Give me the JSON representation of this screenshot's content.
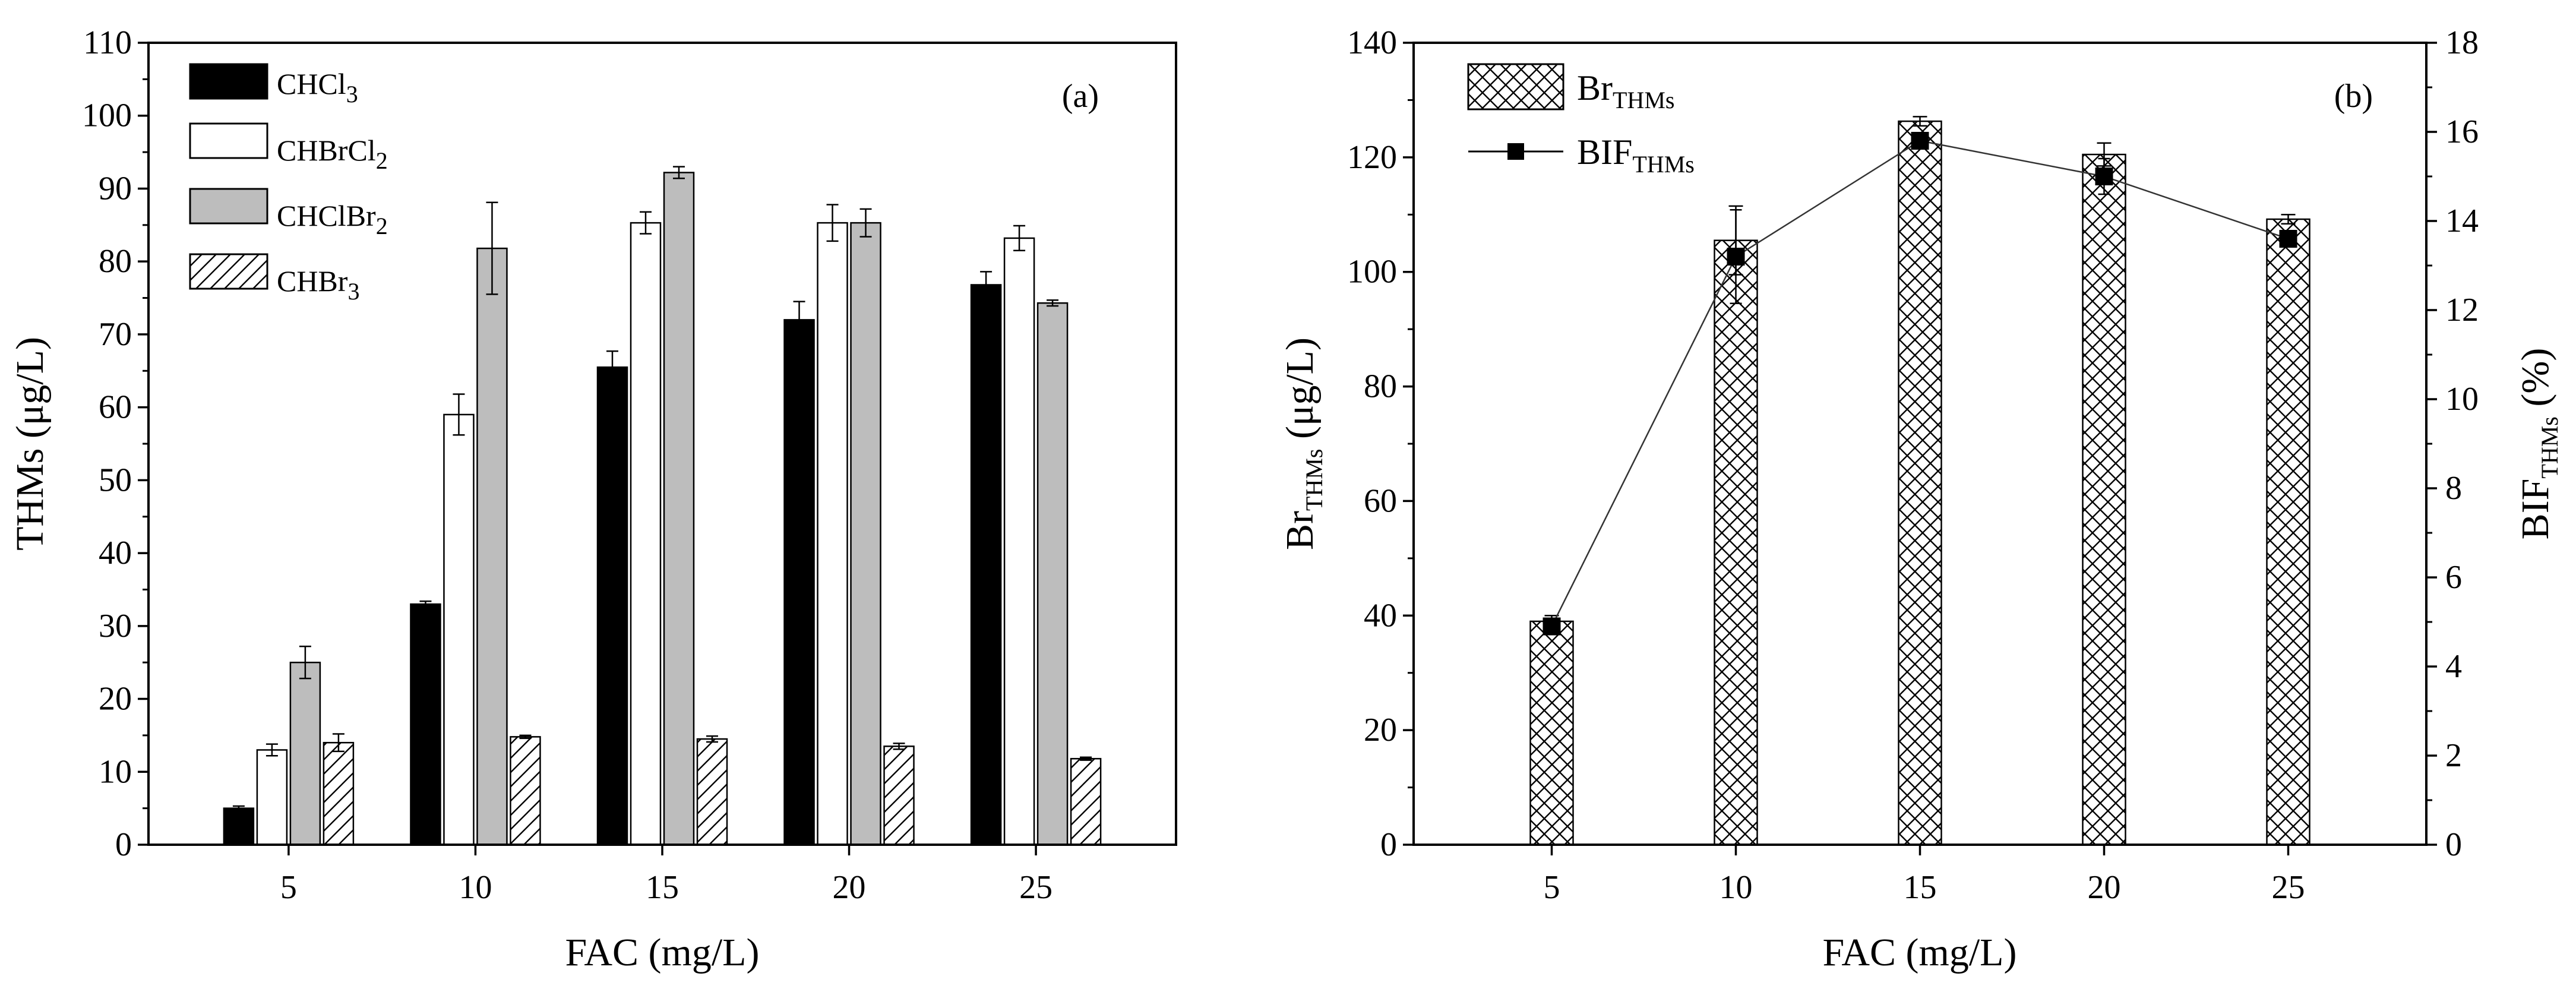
{
  "chart_data": [
    {
      "type": "bar",
      "panel_label": "(a)",
      "categories": [
        "5",
        "10",
        "15",
        "20",
        "25"
      ],
      "xlabel": "FAC (mg/L)",
      "ylabel": "THMs (μg/L)",
      "ylim": [
        0,
        110
      ],
      "yticks": [
        "0",
        "10",
        "20",
        "30",
        "40",
        "50",
        "60",
        "70",
        "80",
        "90",
        "100",
        "110"
      ],
      "legend_position": "top-left",
      "series": [
        {
          "name": "CHCl3",
          "legend_main": "CHCl",
          "legend_sub": "3",
          "fill": "#000000",
          "pattern": "solid",
          "values": [
            5,
            33,
            65.5,
            72,
            76.8
          ],
          "errors": [
            0.3,
            0.4,
            2.2,
            2.5,
            1.8
          ]
        },
        {
          "name": "CHBrCl2",
          "legend_main": "CHBrCl",
          "legend_sub": "2",
          "fill": "#ffffff",
          "pattern": "none",
          "values": [
            13,
            59,
            85.3,
            85.3,
            83.2
          ],
          "errors": [
            0.8,
            2.8,
            1.5,
            2.5,
            1.7
          ]
        },
        {
          "name": "CHClBr2",
          "legend_main": "CHClBr",
          "legend_sub": "2",
          "fill": "#bdbdbd",
          "pattern": "solid",
          "values": [
            25,
            81.8,
            92.2,
            85.3,
            74.3
          ],
          "errors": [
            2.2,
            6.3,
            0.8,
            1.9,
            0.4
          ]
        },
        {
          "name": "CHBr3",
          "legend_main": "CHBr",
          "legend_sub": "3",
          "fill": "#ffffff",
          "pattern": "diagonal",
          "values": [
            14,
            14.8,
            14.5,
            13.5,
            11.8
          ],
          "errors": [
            1.2,
            0.2,
            0.4,
            0.4,
            0.2
          ]
        }
      ]
    },
    {
      "type": "bar+line",
      "panel_label": "(b)",
      "categories": [
        "5",
        "10",
        "15",
        "20",
        "25"
      ],
      "xlabel": "FAC (mg/L)",
      "ylabel_left_main": "Br",
      "ylabel_left_sub": "THMs",
      "ylabel_left_unit": " (μg/L)",
      "ylabel_right_main": "BIF",
      "ylabel_right_sub": "THMs",
      "ylabel_right_unit": " (%)",
      "ylim_left": [
        0,
        140
      ],
      "ylim_right": [
        0,
        18
      ],
      "yticks_left": [
        "0",
        "20",
        "40",
        "60",
        "80",
        "100",
        "120",
        "140"
      ],
      "yticks_right": [
        "0",
        "2",
        "4",
        "6",
        "8",
        "10",
        "12",
        "14",
        "16",
        "18"
      ],
      "legend_position": "top-left",
      "bar_series": {
        "name": "BrTHMs",
        "legend_main": "Br",
        "legend_sub": "THMs",
        "pattern": "crosshatch",
        "values": [
          39,
          105.5,
          126.3,
          120.5,
          109.2
        ],
        "errors": [
          1.0,
          6.0,
          0.8,
          2.0,
          0.8
        ]
      },
      "line_series": {
        "name": "BIFTHMs",
        "legend_main": "BIF",
        "legend_sub": "THMs",
        "marker": "square",
        "values": [
          4.9,
          13.2,
          15.8,
          15.0,
          13.6
        ],
        "errors": [
          0.15,
          1.05,
          0.15,
          0.4,
          0.15
        ]
      }
    }
  ]
}
